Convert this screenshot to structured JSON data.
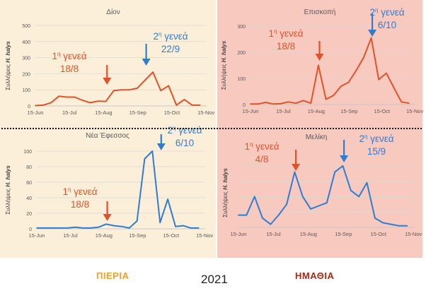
{
  "year": "2021",
  "regions": {
    "left": "ΠΙΕΡΙΑ",
    "right": "ΗΜΑΘΙΑ"
  },
  "colors": {
    "orange": "#e0532a",
    "blue": "#2e7dd2",
    "left_bg": "#fcefd9",
    "right_bg": "#f8c9bf",
    "region_left": "#f2a12b",
    "region_right": "#a32a14"
  },
  "chart_data": [
    {
      "id": "dion",
      "type": "line",
      "title": "Δίον",
      "ylabel_parts": [
        "Συλλήψεις ",
        "H. halys"
      ],
      "x_ticks": [
        "15-Jun",
        "15-Jul",
        "15-Aug",
        "15-Sep",
        "15-Oct",
        "15-Nov"
      ],
      "x_range": [
        0,
        153
      ],
      "ylim": [
        0,
        500
      ],
      "y_ticks": [
        0,
        100,
        200,
        300,
        400,
        500
      ],
      "color": "#e0532a",
      "x": [
        0,
        7,
        14,
        21,
        28,
        35,
        42,
        49,
        56,
        63,
        70,
        77,
        84,
        91,
        98,
        105,
        112,
        119,
        126,
        133,
        140,
        147
      ],
      "y": [
        2,
        5,
        20,
        60,
        55,
        55,
        35,
        20,
        30,
        28,
        95,
        100,
        100,
        110,
        160,
        210,
        95,
        125,
        5,
        40,
        5,
        5
      ],
      "annotations": [
        {
          "label_main": "1",
          "label_sup": "η",
          "label_rest": " γενεά",
          "date": "18/8",
          "color": "#e0532a",
          "x": 64
        },
        {
          "label_main": "2",
          "label_sup": "η",
          "label_rest": " γενεά",
          "date": "22/9",
          "color": "#2e7dd2",
          "x": 99
        }
      ]
    },
    {
      "id": "episkopi",
      "type": "line",
      "title": "Επισκοπή",
      "ylabel_parts": [
        "Συλλήψεις ",
        "H. halys"
      ],
      "x_ticks": [
        "15-Jun",
        "15-Jul",
        "15-Aug",
        "15-Sep",
        "15-Oct",
        "15-Nov"
      ],
      "x_range": [
        0,
        153
      ],
      "ylim": [
        0,
        300
      ],
      "y_ticks": [
        0,
        100,
        200,
        300
      ],
      "color": "#e0532a",
      "x": [
        0,
        7,
        14,
        21,
        28,
        35,
        42,
        49,
        56,
        63,
        70,
        77,
        84,
        91,
        98,
        105,
        112,
        119,
        126,
        133,
        140,
        147
      ],
      "y": [
        2,
        2,
        8,
        2,
        3,
        10,
        5,
        15,
        5,
        150,
        20,
        35,
        70,
        85,
        130,
        180,
        255,
        95,
        120,
        65,
        10,
        5
      ],
      "annotations": [
        {
          "label_main": "1",
          "label_sup": "η",
          "label_rest": " γενεά",
          "date": "18/8",
          "color": "#e0532a",
          "x": 64
        },
        {
          "label_main": "2",
          "label_sup": "η",
          "label_rest": " γενεά",
          "date": "6/10",
          "color": "#2e7dd2",
          "x": 113
        }
      ]
    },
    {
      "id": "nea-efessos",
      "type": "line",
      "title": "Νέα Έφεσσος",
      "ylabel_parts": [
        "Συλλήψεις ",
        "H. halys"
      ],
      "x_ticks": [
        "15-Jun",
        "15-Jul",
        "15-Aug",
        "15-Sep",
        "15-Oct",
        "15-Nov"
      ],
      "x_range": [
        0,
        153
      ],
      "ylim": [
        0,
        100
      ],
      "y_ticks": [
        0,
        20,
        40,
        60,
        80,
        100
      ],
      "color": "#2e7dd2",
      "x": [
        0,
        7,
        14,
        21,
        28,
        35,
        42,
        49,
        56,
        63,
        70,
        77,
        84,
        91,
        98,
        105,
        112,
        119,
        126,
        133,
        140,
        147
      ],
      "y": [
        1,
        1,
        1,
        1,
        1,
        2,
        1,
        1,
        2,
        6,
        4,
        3,
        1,
        10,
        90,
        100,
        8,
        38,
        3,
        4,
        1,
        1
      ],
      "annotations": [
        {
          "label_main": "1",
          "label_sup": "η",
          "label_rest": " γενεά",
          "date": "18/8",
          "color": "#e0532a",
          "x": 64
        },
        {
          "label_main": "2",
          "label_sup": "η",
          "label_rest": " γενεά",
          "date": "6/10",
          "color": "#2e7dd2",
          "x": 113
        }
      ]
    },
    {
      "id": "meliki",
      "type": "line",
      "title": "Μελίκη",
      "ylabel_parts": [
        "Συλλήψεις ",
        "H. halys"
      ],
      "x_ticks": [
        "15-Jun",
        "15-Jul",
        "15-Aug",
        "15-Sep",
        "15-Oct",
        "15-Nov"
      ],
      "x_range": [
        0,
        153
      ],
      "ylim": [
        0,
        45
      ],
      "y_ticks": [],
      "color": "#2e7dd2",
      "x": [
        0,
        7,
        14,
        21,
        28,
        35,
        42,
        49,
        56,
        63,
        70,
        77,
        84,
        91,
        98,
        105,
        112,
        119,
        126,
        133,
        140,
        147
      ],
      "y": [
        8,
        8,
        20,
        6,
        2,
        8,
        15,
        36,
        20,
        12,
        14,
        16,
        36,
        40,
        24,
        20,
        29,
        6,
        3,
        2,
        1,
        1
      ],
      "annotations": [
        {
          "label_main": "1",
          "label_sup": "η",
          "label_rest": " γενεά",
          "date": "4/8",
          "color": "#e0532a",
          "x": 50
        },
        {
          "label_main": "2",
          "label_sup": "η",
          "label_rest": " γενεά",
          "date": "15/9",
          "color": "#2e7dd2",
          "x": 92
        }
      ]
    }
  ]
}
